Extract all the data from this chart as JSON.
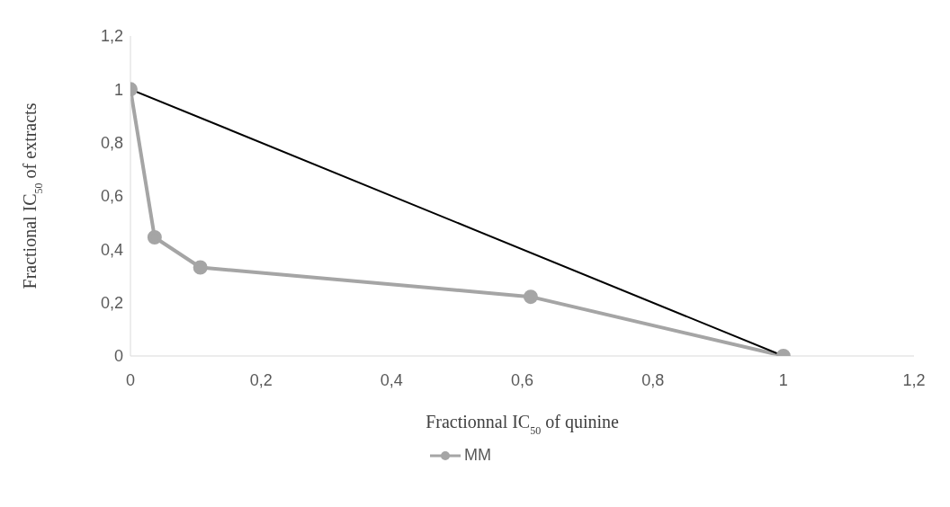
{
  "chart_data": {
    "type": "line",
    "xlabel": "Fractionnal IC$_{50}$ of quinine",
    "ylabel": "Fractional IC$_{50}$ of extracts",
    "xlim": [
      0,
      1.2
    ],
    "xticks": [
      {
        "value": 0,
        "label": "0"
      },
      {
        "value": 0.2,
        "label": "0,2"
      },
      {
        "value": 0.4,
        "label": "0,4"
      },
      {
        "value": 0.6,
        "label": "0,6"
      },
      {
        "value": 0.8,
        "label": "0,8"
      },
      {
        "value": 1,
        "label": "1"
      },
      {
        "value": 1.2,
        "label": "1,2"
      }
    ],
    "ylim": [
      0,
      1.2
    ],
    "yticks": [
      {
        "value": 0,
        "label": "0"
      },
      {
        "value": 0.2,
        "label": "0,2"
      },
      {
        "value": 0.4,
        "label": "0,4"
      },
      {
        "value": 0.6,
        "label": "0,6"
      },
      {
        "value": 0.8,
        "label": "0,8"
      },
      {
        "value": 1,
        "label": "1"
      },
      {
        "value": 1.2,
        "label": "1,2"
      }
    ],
    "grid": false,
    "legend": "bottom",
    "series": [
      {
        "name": "MM",
        "color": "#a5a5a5",
        "marker": "circle",
        "x": [
          0,
          0.037,
          0.107,
          0.613,
          1
        ],
        "values": [
          1,
          0.445,
          0.332,
          0.222,
          0
        ]
      },
      {
        "color": "#000000",
        "marker": "none",
        "x": [
          0,
          1
        ],
        "values": [
          1,
          0
        ]
      }
    ]
  }
}
